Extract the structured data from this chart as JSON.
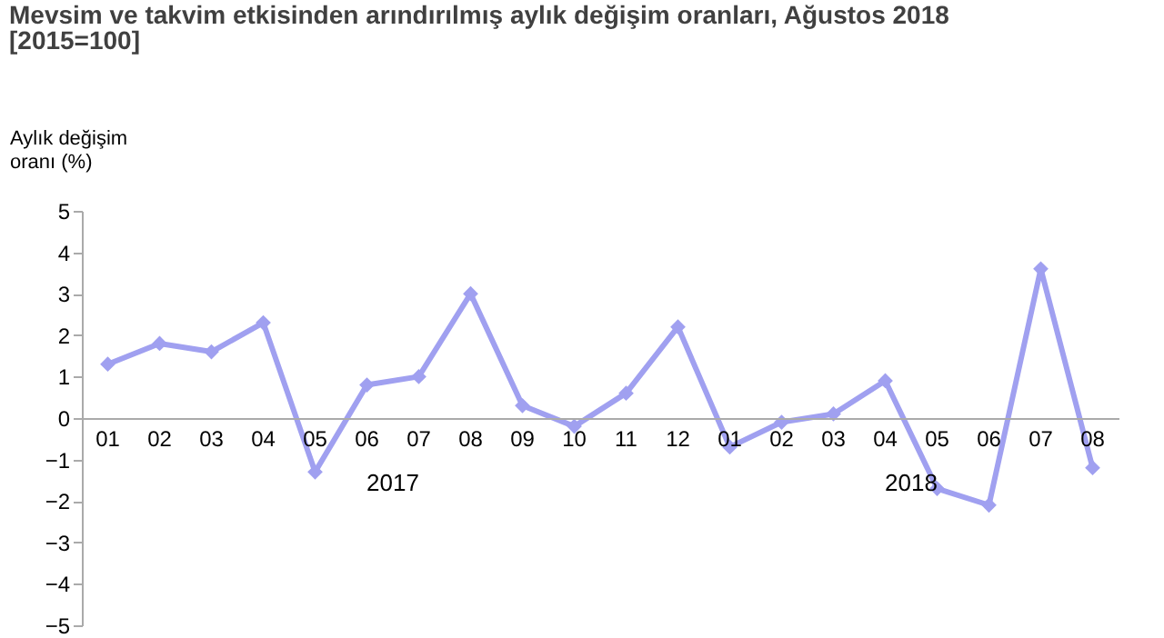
{
  "chart_data": {
    "type": "line",
    "title": "Mevsim ve takvim etkisinden arındırılmış aylık değişim oranları, Ağustos 2018",
    "subtitle": "[2015=100]",
    "ylabel": "Aylık değişim\noranı (%)",
    "categories": [
      "01",
      "02",
      "03",
      "04",
      "05",
      "06",
      "07",
      "08",
      "09",
      "10",
      "11",
      "12",
      "01",
      "02",
      "03",
      "04",
      "05",
      "06",
      "07",
      "08"
    ],
    "series": [
      {
        "color": "#a0a0f0",
        "values": [
          1.3,
          1.8,
          1.6,
          2.3,
          -1.3,
          0.8,
          1.0,
          3.0,
          0.3,
          -0.2,
          0.6,
          2.2,
          -0.7,
          -0.1,
          0.1,
          0.9,
          -1.7,
          -2.1,
          3.6,
          -1.2
        ]
      }
    ],
    "annotations": [
      "2017",
      "2018"
    ],
    "ylim": [
      -5,
      5
    ],
    "yticks": [
      -5,
      -4,
      -3,
      -2,
      -1,
      0,
      1,
      2,
      3,
      4,
      5
    ],
    "grid": false,
    "marker": "diamond",
    "line_style": "solid"
  }
}
